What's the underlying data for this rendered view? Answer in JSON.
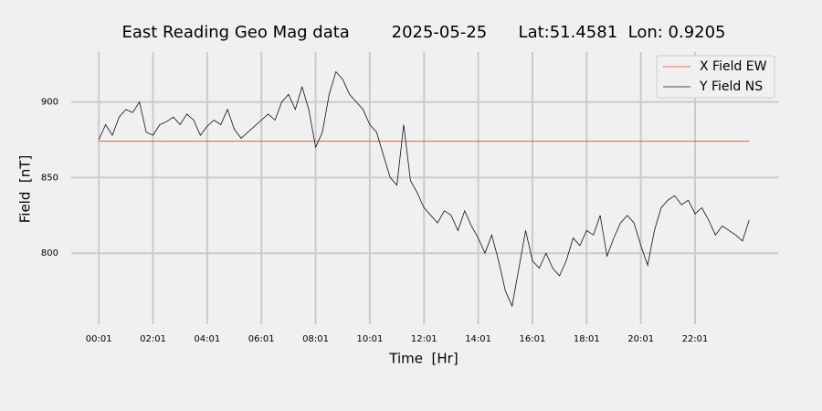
{
  "chart_data": {
    "type": "line",
    "title": "East Reading Geo Mag data        2025-05-25      Lat:51.4581  Lon: 0.9205",
    "xlabel": "Time  [Hr]",
    "ylabel": "Field  [nT]",
    "xlim": [
      -60,
      1505
    ],
    "ylim": [
      753,
      933
    ],
    "xticks": [
      {
        "value": 1,
        "label": "00:01"
      },
      {
        "value": 121,
        "label": "02:01"
      },
      {
        "value": 241,
        "label": "04:01"
      },
      {
        "value": 361,
        "label": "06:01"
      },
      {
        "value": 481,
        "label": "08:01"
      },
      {
        "value": 601,
        "label": "10:01"
      },
      {
        "value": 721,
        "label": "12:01"
      },
      {
        "value": 841,
        "label": "14:01"
      },
      {
        "value": 961,
        "label": "16:01"
      },
      {
        "value": 1081,
        "label": "18:01"
      },
      {
        "value": 1201,
        "label": "20:01"
      },
      {
        "value": 1321,
        "label": "22:01"
      }
    ],
    "yticks": [
      800,
      850,
      900
    ],
    "grid": true,
    "legend": "upper right",
    "series": [
      {
        "name": "X Field EW",
        "color": "#e8413a",
        "x": [
          1,
          1441
        ],
        "values": [
          874,
          874
        ]
      },
      {
        "name": "Y Field NS",
        "color": "#111111",
        "x": [
          1,
          16,
          31,
          46,
          61,
          76,
          91,
          106,
          121,
          136,
          151,
          166,
          181,
          196,
          211,
          226,
          241,
          256,
          271,
          286,
          301,
          316,
          331,
          346,
          361,
          376,
          391,
          406,
          421,
          436,
          451,
          466,
          481,
          496,
          511,
          526,
          541,
          556,
          571,
          586,
          601,
          616,
          631,
          646,
          661,
          676,
          691,
          706,
          721,
          736,
          751,
          766,
          781,
          796,
          811,
          826,
          841,
          856,
          871,
          886,
          901,
          916,
          931,
          946,
          961,
          976,
          991,
          1006,
          1021,
          1036,
          1051,
          1066,
          1081,
          1096,
          1111,
          1126,
          1141,
          1156,
          1171,
          1186,
          1201,
          1216,
          1231,
          1246,
          1261,
          1276,
          1291,
          1306,
          1321,
          1336,
          1351,
          1366,
          1381,
          1396,
          1411,
          1426,
          1441
        ],
        "values": [
          875,
          885,
          878,
          890,
          895,
          893,
          900,
          880,
          878,
          885,
          887,
          890,
          885,
          892,
          888,
          878,
          884,
          888,
          885,
          895,
          882,
          876,
          880,
          884,
          888,
          892,
          888,
          900,
          905,
          895,
          910,
          895,
          870,
          880,
          905,
          920,
          915,
          905,
          900,
          895,
          885,
          880,
          865,
          850,
          845,
          885,
          848,
          840,
          830,
          825,
          820,
          828,
          825,
          815,
          828,
          818,
          810,
          800,
          812,
          795,
          775,
          765,
          790,
          815,
          795,
          790,
          800,
          790,
          785,
          795,
          810,
          805,
          815,
          812,
          825,
          798,
          810,
          820,
          825,
          820,
          805,
          792,
          815,
          830,
          835,
          838,
          832,
          835,
          826,
          830,
          822,
          812,
          818,
          815,
          812,
          808,
          822
        ]
      }
    ]
  }
}
